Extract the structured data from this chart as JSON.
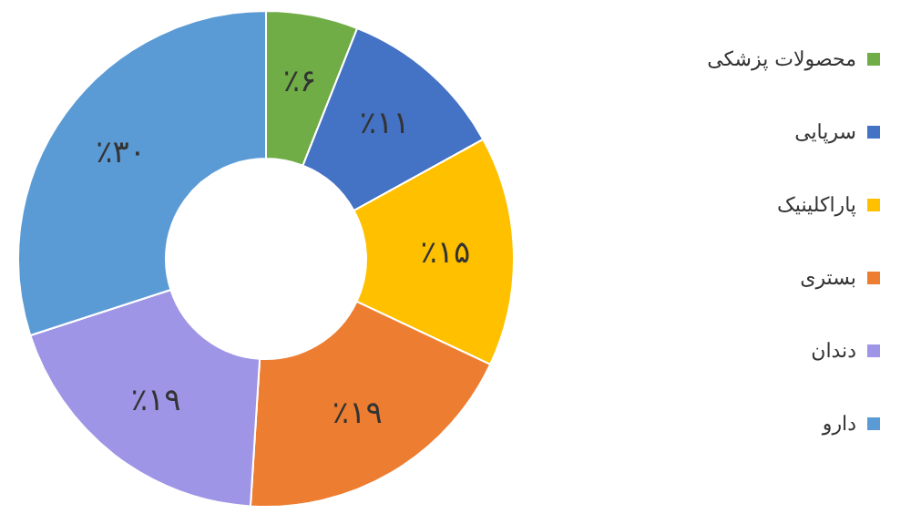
{
  "chart_data": {
    "type": "donut",
    "categories": [
      "محصولات پزشکی",
      "سرپایی",
      "پاراکلینیک",
      "بستری",
      "دندان",
      "دارو"
    ],
    "values": [
      6,
      11,
      15,
      19,
      19,
      30
    ],
    "colors": [
      "#70ad47",
      "#4472c4",
      "#ffc000",
      "#ed7d31",
      "#9e95e6",
      "#5b9bd5"
    ],
    "value_labels": [
      "٪۶",
      "٪۱۱",
      "٪۱۵",
      "٪۱۹",
      "٪۱۹",
      "٪۳۰"
    ],
    "legend": "right"
  }
}
